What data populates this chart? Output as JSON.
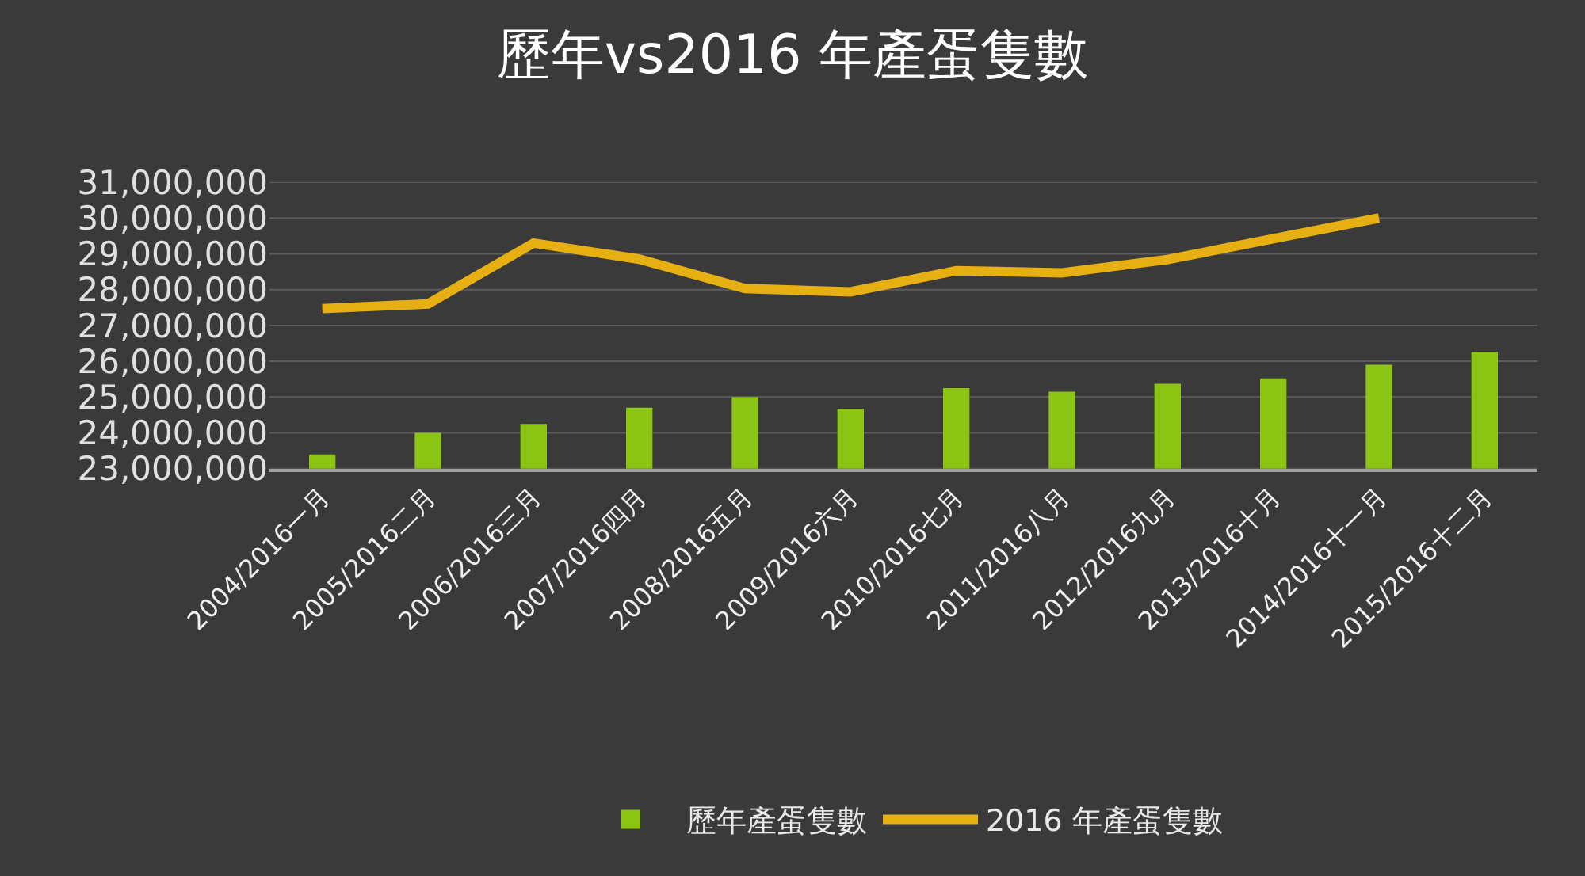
{
  "chart_data": {
    "type": "bar",
    "title": "歷年vs2016 年產蛋隻數",
    "categories": [
      "2004/2016一月",
      "2005/2016二月",
      "2006/2016三月",
      "2007/2016四月",
      "2008/2016五月",
      "2009/2016六月",
      "2010/2016七月",
      "2011/2016八月",
      "2012/2016九月",
      "2013/2016十月",
      "2014/2016十一月",
      "2015/2016十二月"
    ],
    "series": [
      {
        "name": "歷年產蛋隻數",
        "color": "#8cc414",
        "values": [
          23400000,
          24000000,
          24250000,
          24700000,
          25000000,
          24670000,
          25250000,
          25150000,
          25370000,
          25520000,
          25900000,
          26260000
        ]
      },
      {
        "name": "2016 年產蛋隻數",
        "type": "line",
        "color": "#e6b012",
        "values": [
          27470000,
          27600000,
          29300000,
          28850000,
          28030000,
          27940000,
          28530000,
          28470000,
          28840000,
          29420000,
          30000000,
          null
        ]
      }
    ],
    "ylim": [
      23000000,
      31000000
    ],
    "yticks": [
      {
        "value": 23000000,
        "label": "23,000,000"
      },
      {
        "value": 24000000,
        "label": "24,000,000"
      },
      {
        "value": 25000000,
        "label": "25,000,000"
      },
      {
        "value": 26000000,
        "label": "26,000,000"
      },
      {
        "value": 27000000,
        "label": "27,000,000"
      },
      {
        "value": 28000000,
        "label": "28,000,000"
      },
      {
        "value": 29000000,
        "label": "29,000,000"
      },
      {
        "value": 30000000,
        "label": "30,000,000"
      },
      {
        "value": 31000000,
        "label": "31,000,000"
      }
    ],
    "grid": "y",
    "legend": "bottom",
    "marker": "none",
    "line_style": "solid"
  }
}
